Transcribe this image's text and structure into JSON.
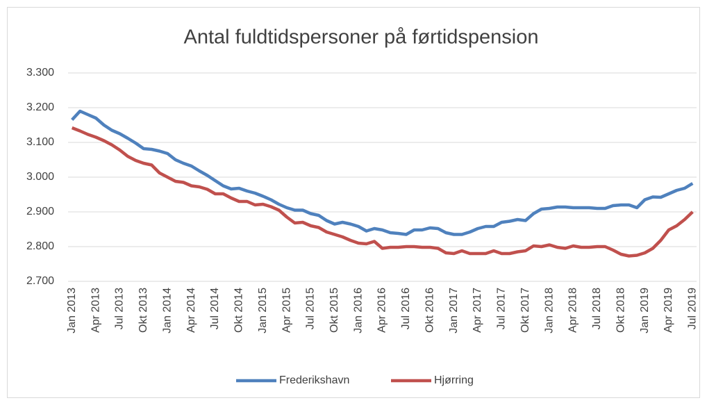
{
  "chart_data": {
    "type": "line",
    "title": "Antal fuldtidspersoner på førtidspension",
    "categories": [
      "Jan 2013",
      null,
      null,
      "Apr 2013",
      null,
      null,
      "Jul 2013",
      null,
      null,
      "Okt 2013",
      null,
      null,
      "Jan 2014",
      null,
      null,
      "Apr 2014",
      null,
      null,
      "Jul 2014",
      null,
      null,
      "Okt 2014",
      null,
      null,
      "Jan 2015",
      null,
      null,
      "Apr 2015",
      null,
      null,
      "Jul 2015",
      null,
      null,
      "Okt 2015",
      null,
      null,
      "Jan 2016",
      null,
      null,
      "Apr 2016",
      null,
      null,
      "Jul 2016",
      null,
      null,
      "Okt 2016",
      null,
      null,
      "Jan 2017",
      null,
      null,
      "Apr 2017",
      null,
      null,
      "Jul 2017",
      null,
      null,
      "Okt 2017",
      null,
      null,
      "Jan 2018",
      null,
      null,
      "Apr 2018",
      null,
      null,
      "Jul 2018",
      null,
      null,
      "Okt 2018",
      null,
      null,
      "Jan 2019",
      null,
      null,
      "Apr 2019",
      null,
      null,
      "Jul 2019"
    ],
    "series": [
      {
        "name": "Frederikshavn",
        "color": "#4f81bd",
        "values": [
          3165,
          3190,
          3180,
          3170,
          3150,
          3135,
          3125,
          3112,
          3098,
          3082,
          3080,
          3075,
          3068,
          3050,
          3040,
          3032,
          3018,
          3005,
          2990,
          2975,
          2966,
          2968,
          2960,
          2954,
          2945,
          2935,
          2922,
          2912,
          2905,
          2905,
          2895,
          2890,
          2875,
          2865,
          2870,
          2865,
          2858,
          2845,
          2852,
          2848,
          2840,
          2838,
          2835,
          2848,
          2848,
          2854,
          2852,
          2840,
          2835,
          2835,
          2842,
          2852,
          2858,
          2858,
          2870,
          2873,
          2878,
          2875,
          2895,
          2908,
          2910,
          2914,
          2914,
          2912,
          2912,
          2912,
          2910,
          2910,
          2918,
          2920,
          2920,
          2912,
          2935,
          2943,
          2942,
          2952,
          2962,
          2968,
          2982
        ]
      },
      {
        "name": "Hjørring",
        "color": "#c0504d",
        "values": [
          3142,
          3133,
          3123,
          3115,
          3105,
          3093,
          3078,
          3060,
          3048,
          3040,
          3035,
          3012,
          3000,
          2988,
          2985,
          2975,
          2972,
          2965,
          2952,
          2952,
          2940,
          2930,
          2930,
          2920,
          2922,
          2915,
          2905,
          2885,
          2868,
          2870,
          2860,
          2855,
          2842,
          2835,
          2828,
          2818,
          2810,
          2808,
          2815,
          2795,
          2798,
          2798,
          2800,
          2800,
          2798,
          2798,
          2795,
          2782,
          2780,
          2788,
          2780,
          2780,
          2780,
          2788,
          2780,
          2780,
          2785,
          2788,
          2802,
          2800,
          2805,
          2798,
          2795,
          2802,
          2798,
          2798,
          2800,
          2800,
          2790,
          2778,
          2773,
          2775,
          2782,
          2795,
          2818,
          2848,
          2860,
          2878,
          2900
        ]
      }
    ],
    "ylim": [
      2700,
      3300
    ],
    "yticks": [
      {
        "value": 2700,
        "label": "2.700"
      },
      {
        "value": 2800,
        "label": "2.800"
      },
      {
        "value": 2900,
        "label": "2.900"
      },
      {
        "value": 3000,
        "label": "3.000"
      },
      {
        "value": 3100,
        "label": "3.100"
      },
      {
        "value": 3200,
        "label": "3.200"
      },
      {
        "value": 3300,
        "label": "3.300"
      }
    ],
    "grid": true,
    "legend": "bottom"
  }
}
